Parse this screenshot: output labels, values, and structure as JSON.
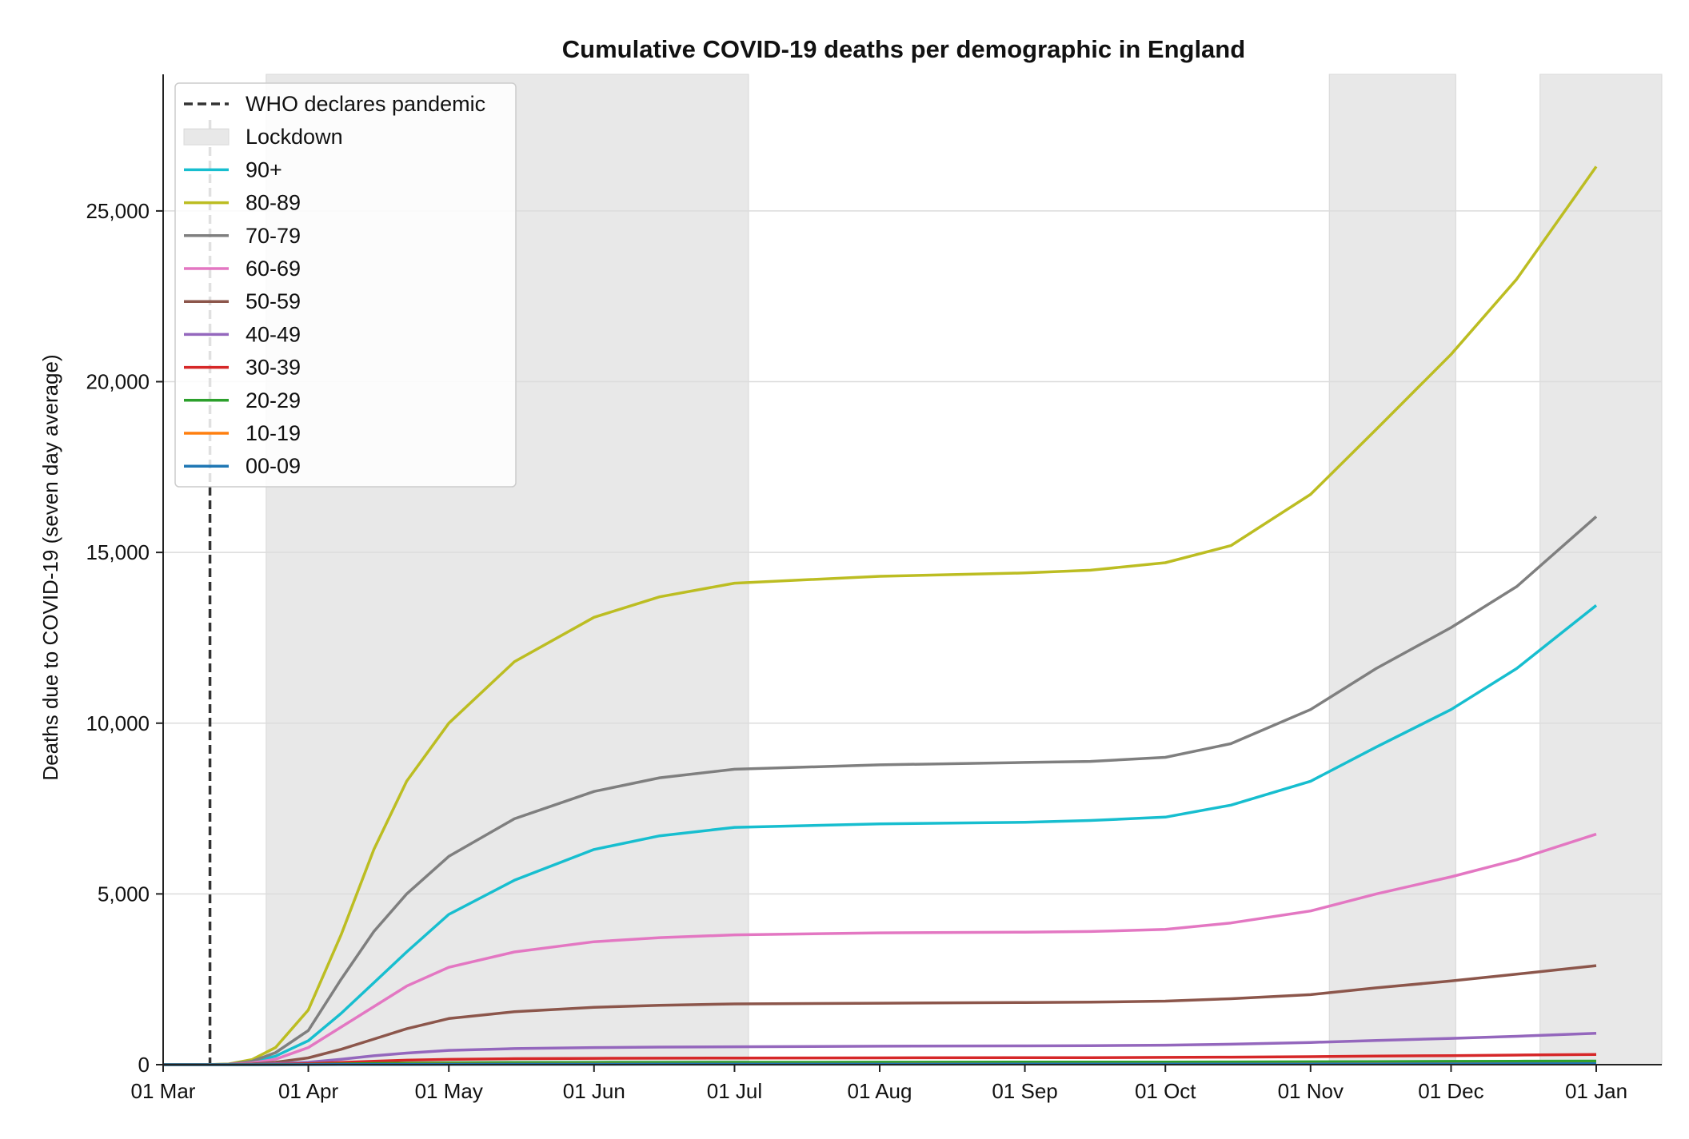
{
  "chart_data": {
    "type": "line",
    "title": "Cumulative COVID-19 deaths per demographic in England",
    "xlabel": "",
    "ylabel": "Deaths due to COVID-19 (seven day average)",
    "x_range": [
      "2020-03-01",
      "2021-01-15"
    ],
    "ylim": [
      0,
      29000
    ],
    "y_ticks": [
      0,
      5000,
      10000,
      15000,
      20000,
      25000
    ],
    "y_tick_labels": [
      "0",
      "5,000",
      "10,000",
      "15,000",
      "20,000",
      "25,000"
    ],
    "x_ticks": [
      "2020-03-01",
      "2020-04-01",
      "2020-05-01",
      "2020-06-01",
      "2020-07-01",
      "2020-08-01",
      "2020-09-01",
      "2020-10-01",
      "2020-11-01",
      "2020-12-01",
      "2021-01-01"
    ],
    "x_tick_labels": [
      "01 Mar",
      "01 Apr",
      "01 May",
      "01 Jun",
      "01 Jul",
      "01 Aug",
      "01 Sep",
      "01 Oct",
      "01 Nov",
      "01 Dec",
      "01 Jan"
    ],
    "grid": "horizontal",
    "legend_position": "top-left",
    "event_line": {
      "name": "WHO declares pandemic",
      "date": "2020-03-11",
      "color": "#333333"
    },
    "shaded_periods": {
      "name": "Lockdown",
      "color": "#e8e8e8",
      "periods": [
        [
          "2020-03-23",
          "2020-07-04"
        ],
        [
          "2020-11-05",
          "2020-12-02"
        ],
        [
          "2020-12-20",
          "2021-01-15"
        ]
      ]
    },
    "x": [
      "2020-03-01",
      "2020-03-10",
      "2020-03-15",
      "2020-03-20",
      "2020-03-25",
      "2020-04-01",
      "2020-04-08",
      "2020-04-15",
      "2020-04-22",
      "2020-05-01",
      "2020-05-15",
      "2020-06-01",
      "2020-06-15",
      "2020-07-01",
      "2020-08-01",
      "2020-09-01",
      "2020-09-15",
      "2020-10-01",
      "2020-10-15",
      "2020-11-01",
      "2020-11-15",
      "2020-12-01",
      "2020-12-15",
      "2021-01-01"
    ],
    "series": [
      {
        "name": "90+",
        "color": "#17becf",
        "values": [
          0,
          0,
          10,
          80,
          250,
          700,
          1500,
          2400,
          3300,
          4400,
          5400,
          6300,
          6700,
          6950,
          7050,
          7100,
          7150,
          7250,
          7600,
          8300,
          9300,
          10400,
          11600,
          13450
        ]
      },
      {
        "name": "80-89",
        "color": "#bcbd22",
        "values": [
          0,
          0,
          20,
          150,
          500,
          1600,
          3800,
          6300,
          8300,
          10000,
          11800,
          13100,
          13700,
          14100,
          14300,
          14400,
          14480,
          14700,
          15200,
          16700,
          18600,
          20800,
          23000,
          26300
        ]
      },
      {
        "name": "70-79",
        "color": "#7f7f7f",
        "values": [
          0,
          0,
          15,
          100,
          350,
          1000,
          2500,
          3900,
          5000,
          6100,
          7200,
          8000,
          8400,
          8650,
          8780,
          8850,
          8880,
          9000,
          9400,
          10400,
          11600,
          12800,
          14000,
          16050
        ]
      },
      {
        "name": "60-69",
        "color": "#e377c2",
        "values": [
          0,
          0,
          8,
          50,
          160,
          500,
          1100,
          1700,
          2300,
          2850,
          3300,
          3600,
          3720,
          3800,
          3860,
          3880,
          3900,
          3960,
          4150,
          4500,
          5000,
          5500,
          6000,
          6750
        ]
      },
      {
        "name": "50-59",
        "color": "#8c564b",
        "values": [
          0,
          0,
          3,
          20,
          70,
          200,
          450,
          750,
          1050,
          1350,
          1550,
          1680,
          1740,
          1780,
          1800,
          1820,
          1830,
          1860,
          1930,
          2050,
          2250,
          2450,
          2650,
          2900
        ]
      },
      {
        "name": "40-49",
        "color": "#9467bd",
        "values": [
          0,
          0,
          1,
          8,
          25,
          70,
          160,
          260,
          340,
          420,
          470,
          500,
          515,
          525,
          540,
          550,
          555,
          570,
          600,
          650,
          710,
          770,
          830,
          920
        ]
      },
      {
        "name": "30-39",
        "color": "#d62728",
        "values": [
          0,
          0,
          0,
          3,
          10,
          30,
          65,
          100,
          130,
          155,
          175,
          185,
          190,
          195,
          200,
          205,
          207,
          212,
          220,
          235,
          250,
          265,
          280,
          300
        ]
      },
      {
        "name": "20-29",
        "color": "#2ca02c",
        "values": [
          0,
          0,
          0,
          1,
          4,
          10,
          22,
          35,
          45,
          55,
          62,
          66,
          68,
          70,
          72,
          74,
          75,
          77,
          80,
          85,
          90,
          95,
          100,
          105
        ]
      },
      {
        "name": "10-19",
        "color": "#ff7f0e",
        "values": [
          0,
          0,
          0,
          0,
          1,
          2,
          5,
          8,
          10,
          13,
          15,
          16,
          17,
          18,
          19,
          20,
          20,
          21,
          22,
          24,
          26,
          28,
          30,
          32
        ]
      },
      {
        "name": "00-09",
        "color": "#1f77b4",
        "values": [
          0,
          0,
          0,
          0,
          1,
          2,
          4,
          6,
          8,
          10,
          11,
          12,
          13,
          14,
          15,
          16,
          16,
          17,
          18,
          19,
          21,
          23,
          25,
          27
        ]
      }
    ]
  }
}
